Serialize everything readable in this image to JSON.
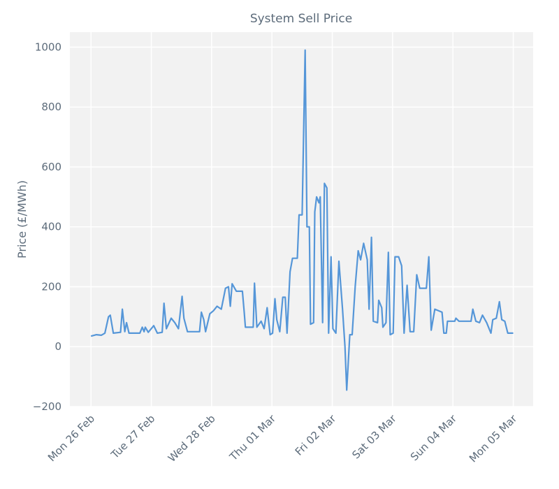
{
  "chart_data": {
    "type": "line",
    "title": "System Sell Price",
    "y_label": "Price (£/MWh)",
    "color": "#5596d8",
    "grid": true,
    "xlim": [
      -0.35,
      7.33
    ],
    "ylim": [
      -200,
      1050
    ],
    "xticks": [
      {
        "value": 0,
        "label": "Mon 26 Feb"
      },
      {
        "value": 1,
        "label": "Tue 27 Feb"
      },
      {
        "value": 2,
        "label": "Wed 28 Feb"
      },
      {
        "value": 3,
        "label": "Thu 01 Mar"
      },
      {
        "value": 4,
        "label": "Fri 02 Mar"
      },
      {
        "value": 5,
        "label": "Sat 03 Mar"
      },
      {
        "value": 6,
        "label": "Sun 04 Mar"
      },
      {
        "value": 7,
        "label": "Mon 05 Mar"
      }
    ],
    "yticks": [
      {
        "value": -200,
        "label": "−200"
      },
      0,
      200,
      400,
      600,
      800,
      1000
    ],
    "x": [
      0,
      0.09,
      0.17,
      0.23,
      0.29,
      0.32,
      0.37,
      0.49,
      0.52,
      0.56,
      0.59,
      0.63,
      0.81,
      0.85,
      0.88,
      0.9,
      0.95,
      1.04,
      1.1,
      1.18,
      1.21,
      1.25,
      1.33,
      1.39,
      1.45,
      1.51,
      1.54,
      1.6,
      1.8,
      1.83,
      1.87,
      1.9,
      1.97,
      2.03,
      2.09,
      2.16,
      2.23,
      2.28,
      2.31,
      2.34,
      2.41,
      2.51,
      2.54,
      2.56,
      2.69,
      2.71,
      2.75,
      2.82,
      2.87,
      2.92,
      2.97,
      3.01,
      3.05,
      3.08,
      3.13,
      3.18,
      3.22,
      3.25,
      3.3,
      3.34,
      3.42,
      3.45,
      3.5,
      3.55,
      3.58,
      3.62,
      3.64,
      3.69,
      3.71,
      3.74,
      3.78,
      3.8,
      3.84,
      3.87,
      3.91,
      3.94,
      3.98,
      4.01,
      4.06,
      4.11,
      4.17,
      4.21,
      4.24,
      4.29,
      4.33,
      4.38,
      4.43,
      4.47,
      4.52,
      4.58,
      4.61,
      4.65,
      4.68,
      4.75,
      4.77,
      4.82,
      4.84,
      4.89,
      4.93,
      4.96,
      5.01,
      5.04,
      5.1,
      5.15,
      5.19,
      5.24,
      5.29,
      5.35,
      5.4,
      5.45,
      5.56,
      5.6,
      5.64,
      5.7,
      5.82,
      5.85,
      5.89,
      5.91,
      6.03,
      6.05,
      6.1,
      6.3,
      6.33,
      6.38,
      6.44,
      6.49,
      6.56,
      6.63,
      6.66,
      6.72,
      6.77,
      6.81,
      6.86,
      6.91,
      7.0
    ],
    "values": [
      35,
      40,
      38,
      45,
      100,
      105,
      45,
      48,
      125,
      50,
      80,
      45,
      45,
      65,
      50,
      65,
      48,
      70,
      45,
      48,
      145,
      60,
      95,
      80,
      60,
      168,
      95,
      50,
      50,
      115,
      90,
      50,
      110,
      120,
      135,
      125,
      195,
      200,
      135,
      210,
      185,
      185,
      115,
      65,
      65,
      212,
      65,
      85,
      60,
      130,
      40,
      45,
      160,
      90,
      50,
      165,
      165,
      45,
      250,
      295,
      295,
      440,
      440,
      990,
      400,
      400,
      75,
      80,
      450,
      500,
      480,
      500,
      80,
      545,
      530,
      45,
      300,
      60,
      45,
      285,
      125,
      0,
      -145,
      40,
      40,
      200,
      320,
      290,
      345,
      290,
      125,
      365,
      85,
      80,
      155,
      130,
      65,
      80,
      315,
      40,
      45,
      300,
      300,
      270,
      45,
      205,
      50,
      50,
      240,
      195,
      195,
      300,
      55,
      125,
      115,
      45,
      45,
      85,
      85,
      95,
      85,
      85,
      125,
      85,
      80,
      105,
      80,
      45,
      90,
      95,
      150,
      90,
      85,
      45,
      45
    ]
  }
}
